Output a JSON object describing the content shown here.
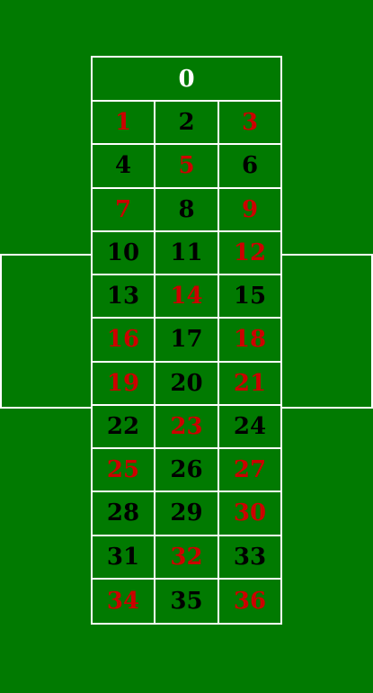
{
  "table": {
    "felt_color": "#017a01",
    "line_color": "#ffffff",
    "zero_label": "0",
    "numbers": [
      {
        "label": "1",
        "color": "red"
      },
      {
        "label": "2",
        "color": "black"
      },
      {
        "label": "3",
        "color": "red"
      },
      {
        "label": "4",
        "color": "black"
      },
      {
        "label": "5",
        "color": "red"
      },
      {
        "label": "6",
        "color": "black"
      },
      {
        "label": "7",
        "color": "red"
      },
      {
        "label": "8",
        "color": "black"
      },
      {
        "label": "9",
        "color": "red"
      },
      {
        "label": "10",
        "color": "black"
      },
      {
        "label": "11",
        "color": "black"
      },
      {
        "label": "12",
        "color": "red"
      },
      {
        "label": "13",
        "color": "black"
      },
      {
        "label": "14",
        "color": "red"
      },
      {
        "label": "15",
        "color": "black"
      },
      {
        "label": "16",
        "color": "red"
      },
      {
        "label": "17",
        "color": "black"
      },
      {
        "label": "18",
        "color": "red"
      },
      {
        "label": "19",
        "color": "red"
      },
      {
        "label": "20",
        "color": "black"
      },
      {
        "label": "21",
        "color": "red"
      },
      {
        "label": "22",
        "color": "black"
      },
      {
        "label": "23",
        "color": "red"
      },
      {
        "label": "24",
        "color": "black"
      },
      {
        "label": "25",
        "color": "red"
      },
      {
        "label": "26",
        "color": "black"
      },
      {
        "label": "27",
        "color": "red"
      },
      {
        "label": "28",
        "color": "black"
      },
      {
        "label": "29",
        "color": "black"
      },
      {
        "label": "30",
        "color": "red"
      },
      {
        "label": "31",
        "color": "black"
      },
      {
        "label": "32",
        "color": "red"
      },
      {
        "label": "33",
        "color": "black"
      },
      {
        "label": "34",
        "color": "red"
      },
      {
        "label": "35",
        "color": "black"
      },
      {
        "label": "36",
        "color": "red"
      }
    ]
  }
}
